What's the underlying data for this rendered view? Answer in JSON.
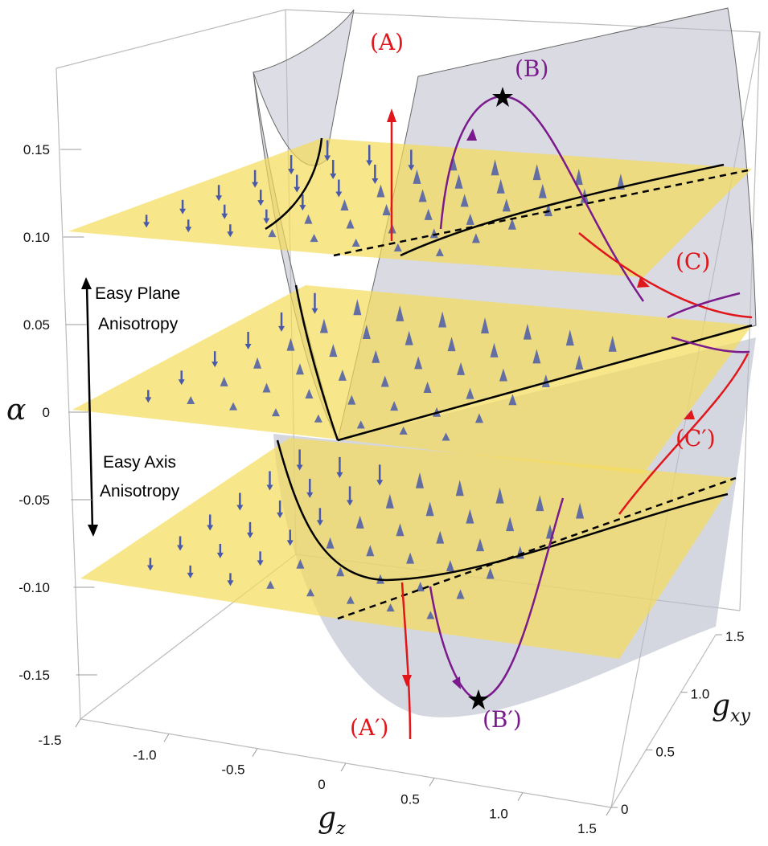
{
  "chart_data": {
    "type": "3d-surface",
    "axes": {
      "x": {
        "label": "g",
        "label_sub": "z",
        "range": [
          -1.5,
          1.5
        ],
        "ticks": [
          "-1.5",
          "-1.0",
          "-0.5",
          "0",
          "0.5",
          "1.0",
          "1.5"
        ]
      },
      "y": {
        "label": "g",
        "label_sub": "xy",
        "range": [
          0,
          1.5
        ],
        "ticks": [
          "0",
          "0.5",
          "1.0",
          "1.5"
        ]
      },
      "z": {
        "label": "α",
        "range": [
          -0.15,
          0.15
        ],
        "ticks": [
          "0.15",
          "0.10",
          "0.05",
          "0",
          "-0.05",
          "-0.10",
          "-0.15"
        ]
      }
    },
    "planes_alpha": [
      0.1,
      0.0,
      -0.1
    ],
    "annotations": {
      "easy_plane": [
        "Easy Plane",
        "Anisotropy"
      ],
      "easy_axis": [
        "Easy Axis",
        "Anisotropy"
      ],
      "flows": [
        "(A)",
        "(B)",
        "(C)",
        "(A′)",
        "(B′)",
        "(C′)"
      ]
    },
    "colors": {
      "plane": "#f5dc5a",
      "surface": "#b9bccb",
      "arrows": "#4a5aa8",
      "red_flow": "#e0161b",
      "purple_flow": "#7a1a8c"
    }
  }
}
